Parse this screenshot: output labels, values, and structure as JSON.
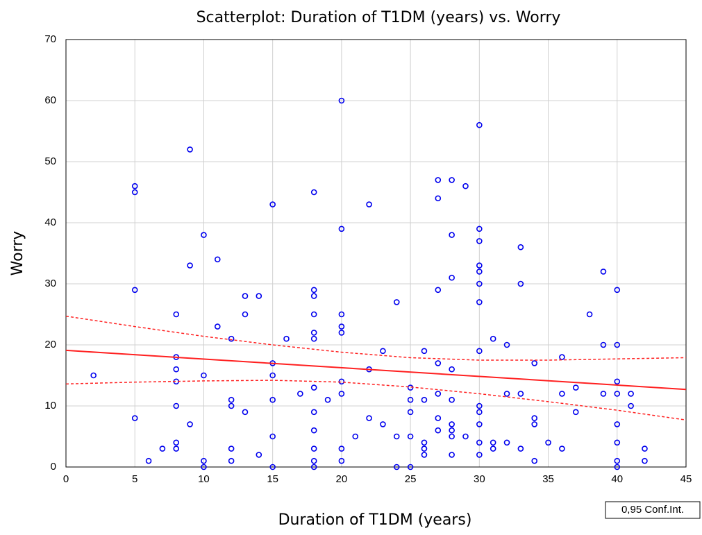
{
  "chart_data": {
    "type": "scatter",
    "title": "Scatterplot: Duration of T1DM (years) vs. Worry",
    "x_label": "Duration of T1DM (years)",
    "y_label": "Worry",
    "xlim": [
      0,
      45
    ],
    "xticks": [
      0,
      5,
      10,
      15,
      20,
      25,
      30,
      35,
      40,
      45
    ],
    "ylim": [
      0,
      70
    ],
    "yticks": [
      0,
      10,
      20,
      30,
      40,
      50,
      60,
      70
    ],
    "grid": true,
    "points": {
      "color": "#0000ee",
      "x": [
        2,
        5,
        5,
        5,
        5,
        6,
        7,
        8,
        8,
        8,
        8,
        8,
        8,
        8,
        9,
        9,
        9,
        10,
        10,
        10,
        10,
        11,
        11,
        12,
        12,
        12,
        12,
        12,
        13,
        13,
        13,
        14,
        14,
        15,
        15,
        15,
        15,
        15,
        15,
        16,
        17,
        18,
        18,
        18,
        18,
        18,
        18,
        18,
        18,
        18,
        18,
        18,
        18,
        19,
        20,
        20,
        20,
        20,
        20,
        20,
        20,
        20,
        20,
        21,
        22,
        22,
        22,
        23,
        23,
        24,
        24,
        24,
        25,
        25,
        25,
        25,
        25,
        26,
        26,
        26,
        26,
        26,
        27,
        27,
        27,
        27,
        27,
        27,
        27,
        28,
        28,
        28,
        28,
        28,
        28,
        28,
        28,
        28,
        29,
        29,
        30,
        30,
        30,
        30,
        30,
        30,
        30,
        30,
        30,
        30,
        30,
        30,
        30,
        31,
        31,
        31,
        32,
        32,
        32,
        33,
        33,
        33,
        33,
        34,
        34,
        34,
        34,
        35,
        36,
        36,
        36,
        37,
        37,
        38,
        39,
        39,
        39,
        40,
        40,
        40,
        40,
        40,
        40,
        40,
        40,
        41,
        41,
        42,
        42
      ],
      "y": [
        15,
        46,
        45,
        29,
        8,
        1,
        3,
        25,
        18,
        16,
        14,
        10,
        4,
        3,
        52,
        33,
        7,
        38,
        15,
        1,
        0,
        34,
        23,
        21,
        11,
        10,
        3,
        1,
        28,
        25,
        9,
        28,
        2,
        43,
        17,
        15,
        11,
        5,
        0,
        21,
        12,
        45,
        29,
        28,
        25,
        22,
        21,
        13,
        9,
        6,
        3,
        1,
        0,
        11,
        60,
        39,
        25,
        23,
        22,
        14,
        12,
        3,
        1,
        5,
        43,
        16,
        8,
        19,
        7,
        27,
        5,
        0,
        13,
        11,
        9,
        5,
        0,
        19,
        11,
        4,
        3,
        2,
        47,
        44,
        29,
        17,
        12,
        8,
        6,
        47,
        38,
        31,
        16,
        11,
        7,
        6,
        5,
        2,
        46,
        5,
        56,
        39,
        37,
        33,
        32,
        30,
        27,
        19,
        10,
        9,
        7,
        4,
        2,
        21,
        4,
        3,
        20,
        12,
        4,
        36,
        30,
        12,
        3,
        17,
        8,
        7,
        1,
        4,
        18,
        12,
        3,
        13,
        9,
        25,
        32,
        20,
        12,
        29,
        20,
        14,
        12,
        7,
        4,
        1,
        0,
        12,
        10,
        3,
        1
      ]
    },
    "fit": {
      "color": "#ff2020",
      "x": [
        0,
        45
      ],
      "y": [
        19.1,
        12.7
      ]
    },
    "conf_band": {
      "name": "0,95 Conf.Int.",
      "color": "#ff2020",
      "x": [
        0,
        5,
        10,
        15,
        20,
        25,
        30,
        35,
        40,
        45
      ],
      "upper": [
        24.7,
        23.0,
        21.4,
        20.0,
        18.8,
        17.9,
        17.5,
        17.5,
        17.7,
        17.9
      ],
      "lower": [
        13.6,
        13.9,
        14.1,
        14.2,
        13.9,
        13.1,
        12.0,
        10.7,
        9.3,
        7.7
      ]
    }
  }
}
